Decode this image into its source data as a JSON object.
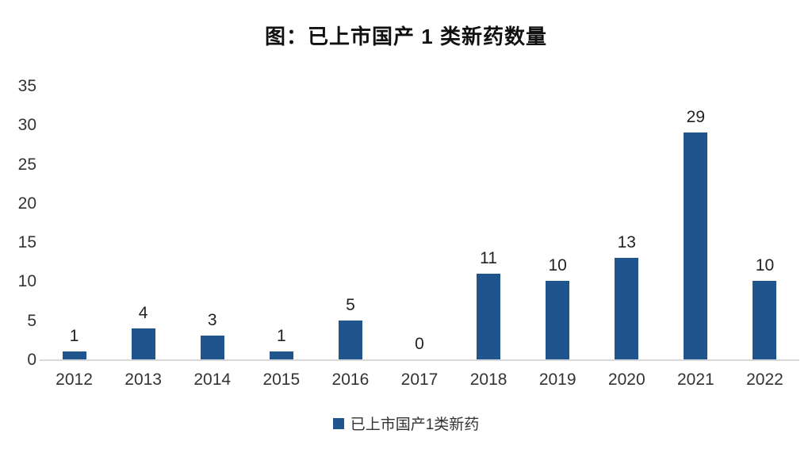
{
  "chart_data": {
    "type": "bar",
    "title": "图：已上市国产 1 类新药数量",
    "categories": [
      "2012",
      "2013",
      "2014",
      "2015",
      "2016",
      "2017",
      "2018",
      "2019",
      "2020",
      "2021",
      "2022"
    ],
    "series": [
      {
        "name": "已上市国产1类新药",
        "values": [
          1,
          4,
          3,
          1,
          5,
          0,
          11,
          10,
          13,
          29,
          10
        ]
      }
    ],
    "data_labels": [
      "1",
      "4",
      "3",
      "1",
      "5",
      "0",
      "11",
      "10",
      "13",
      "29",
      "10"
    ],
    "xlabel": "",
    "ylabel": "",
    "ylim": [
      0,
      35
    ],
    "y_ticks": [
      0,
      5,
      10,
      15,
      20,
      25,
      30,
      35
    ],
    "grid": false,
    "legend_position": "bottom",
    "bar_color": "#20548C",
    "axis_line_color": "#D9D9D9",
    "text_color": "#333333"
  }
}
